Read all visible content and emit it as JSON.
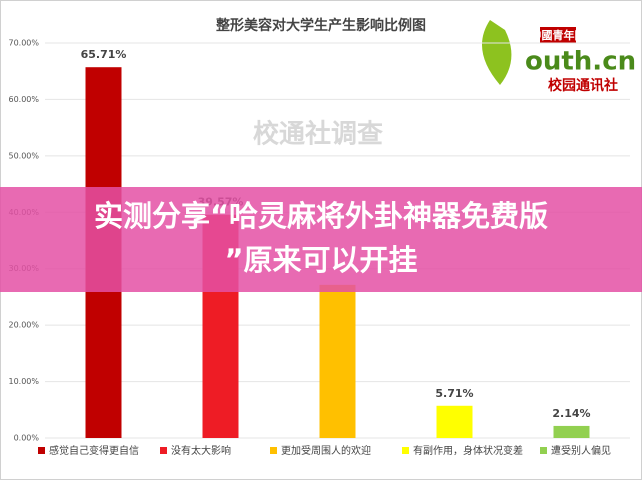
{
  "chart_data": {
    "type": "bar",
    "title": "整形美容对大学生产生影响比例图",
    "categories": [
      "感觉自己变得更自信",
      "没有太大影响",
      "更加受周围人的欢迎",
      "有副作用，身体状况变差",
      "遭受别人偏见"
    ],
    "values": [
      65.71,
      39.57,
      27.14,
      5.71,
      2.14
    ],
    "value_labels": [
      "65.71%",
      "39.57%",
      null,
      "5.71%",
      "2.14%"
    ],
    "colors": [
      "#c00000",
      "#ee1c25",
      "#ffc000",
      "#ffff00",
      "#92d050"
    ],
    "ylim": [
      0,
      70
    ],
    "yticks": [
      {
        "value": 0,
        "label": "0.00%"
      },
      {
        "value": 10,
        "label": "10.00%"
      },
      {
        "value": 20,
        "label": "20.00%"
      },
      {
        "value": 30,
        "label": "30.00%"
      },
      {
        "value": 40,
        "label": "40.00%"
      },
      {
        "value": 50,
        "label": "50.00%"
      },
      {
        "value": 60,
        "label": "60.00%"
      },
      {
        "value": 70,
        "label": "70.00%"
      }
    ],
    "grid": true,
    "legend": "bottom"
  },
  "watermark": "校通社调查",
  "logo": {
    "brand": "中國青年网",
    "site": "outh.cn",
    "unit": "校园通讯社"
  },
  "banner": {
    "line1": "实测分享“哈灵麻将外卦神器免费版",
    "line2": "”原来可以开挂"
  }
}
